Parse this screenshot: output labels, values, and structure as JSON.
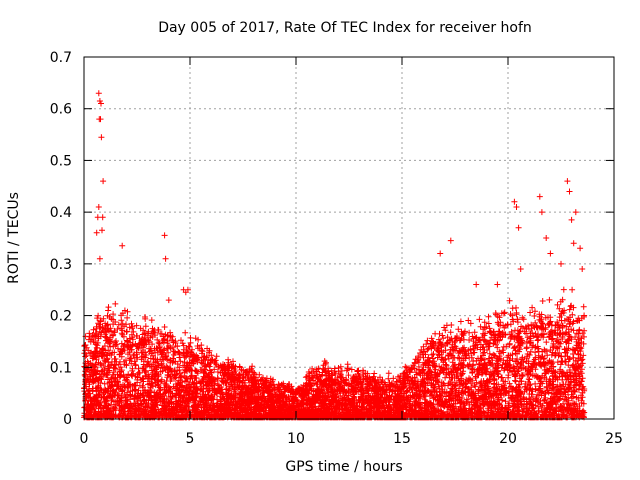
{
  "chart_data": {
    "type": "scatter",
    "title": "Day 005 of 2017, Rate Of TEC Index for receiver hofn",
    "xlabel": "GPS time / hours",
    "ylabel": "ROTI / TECUs",
    "xlim": [
      0,
      25
    ],
    "ylim": [
      0,
      0.7
    ],
    "xticks": [
      0,
      5,
      10,
      15,
      20,
      25
    ],
    "xtick_labels": [
      "0",
      "5",
      "10",
      "15",
      "20",
      "25"
    ],
    "yticks": [
      0,
      0.1,
      0.2,
      0.3,
      0.4,
      0.5,
      0.6,
      0.7
    ],
    "ytick_labels": [
      "0",
      "0.1",
      "0.2",
      "0.3",
      "0.4",
      "0.5",
      "0.6",
      "0.7"
    ],
    "grid": true,
    "marker": "+",
    "color": "#ff0000",
    "envelope_hours": [
      0,
      1,
      2,
      3,
      4,
      5,
      6,
      7,
      8,
      9,
      10,
      11,
      12,
      13,
      14,
      15,
      16,
      17,
      18,
      19,
      20,
      21,
      22,
      23,
      23.6
    ],
    "envelope_roti": [
      0.15,
      0.21,
      0.19,
      0.18,
      0.16,
      0.15,
      0.12,
      0.1,
      0.09,
      0.07,
      0.06,
      0.1,
      0.1,
      0.09,
      0.08,
      0.08,
      0.14,
      0.17,
      0.18,
      0.18,
      0.2,
      0.2,
      0.22,
      0.22,
      0.2
    ],
    "series": [
      {
        "name": "outliers",
        "x": [
          0.7,
          0.75,
          0.8,
          0.72,
          0.78,
          0.82,
          0.7,
          0.9,
          0.6,
          0.65,
          0.85,
          0.88,
          0.75,
          1.8,
          3.8,
          3.85,
          4.0,
          4.7,
          4.8,
          4.9,
          16.8,
          17.3,
          18.5,
          19.5,
          20.3,
          20.4,
          20.5,
          21.5,
          21.6,
          21.8,
          22.8,
          22.9,
          23.0,
          23.2,
          23.4,
          23.5,
          20.6,
          22.5,
          22.0,
          23.1
        ],
        "y": [
          0.63,
          0.615,
          0.61,
          0.58,
          0.58,
          0.545,
          0.41,
          0.46,
          0.36,
          0.39,
          0.365,
          0.39,
          0.31,
          0.335,
          0.355,
          0.31,
          0.23,
          0.25,
          0.245,
          0.25,
          0.32,
          0.345,
          0.26,
          0.26,
          0.42,
          0.41,
          0.37,
          0.43,
          0.4,
          0.35,
          0.46,
          0.44,
          0.385,
          0.4,
          0.33,
          0.29,
          0.29,
          0.3,
          0.32,
          0.34
        ]
      }
    ]
  }
}
